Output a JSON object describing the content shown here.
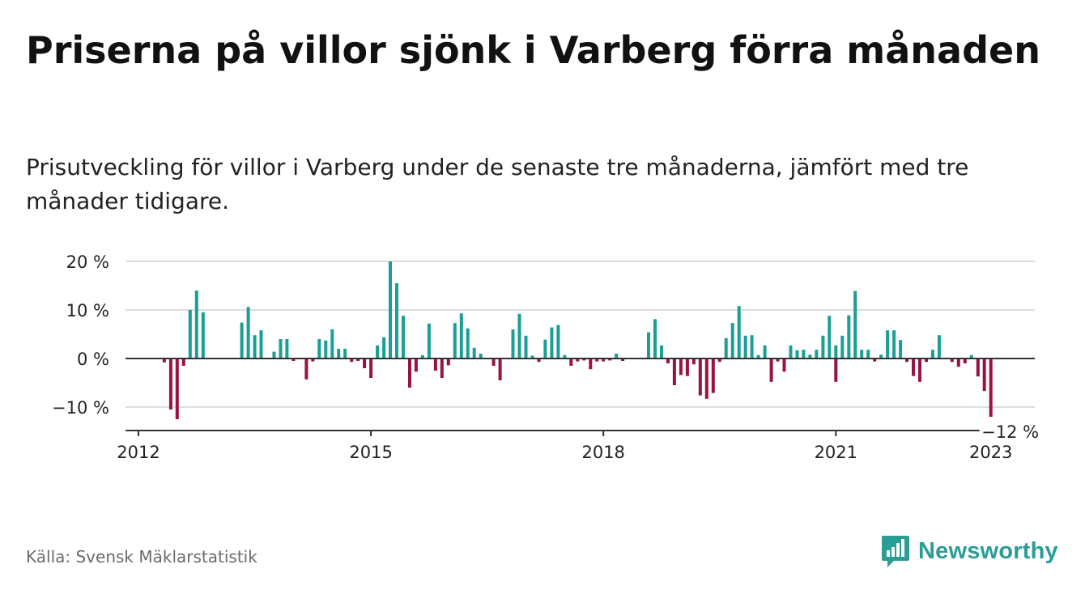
{
  "title": "Priserna på villor sjönk i Varberg förra månaden",
  "subtitle": "Prisutveckling för villor i Varberg under de senaste tre månaderna, jämfört med tre månader tidigare.",
  "source": "Källa: Svensk Mäklarstatistik",
  "brand": {
    "name": "Newsworthy",
    "icon": "newsworthy-logo-icon"
  },
  "colors": {
    "positive": "#1a9e96",
    "negative": "#9a1244",
    "grid": "#dddddd",
    "axis": "#333333"
  },
  "chart_data": {
    "type": "bar",
    "y_ticks": [
      {
        "value": 20,
        "label": "20 %"
      },
      {
        "value": 10,
        "label": "10 %"
      },
      {
        "value": 0,
        "label": "0 %"
      },
      {
        "value": -10,
        "label": "−10 %"
      }
    ],
    "x_ticks": [
      {
        "value": "2012-01",
        "label": "2012"
      },
      {
        "value": "2015-01",
        "label": "2015"
      },
      {
        "value": "2018-01",
        "label": "2018"
      },
      {
        "value": "2021-01",
        "label": "2021"
      },
      {
        "value": "2023-01",
        "label": "2023"
      }
    ],
    "ylim": [
      -15,
      20
    ],
    "xlim": [
      "2012-01",
      "2023-06"
    ],
    "grid": true,
    "annotation": {
      "x": "2023-04",
      "label": "−12 %"
    },
    "points": [
      {
        "x": "2012-05",
        "y": -0.8
      },
      {
        "x": "2012-06",
        "y": -10.5
      },
      {
        "x": "2012-07",
        "y": -12.5
      },
      {
        "x": "2012-08",
        "y": -1.5
      },
      {
        "x": "2012-09",
        "y": 10
      },
      {
        "x": "2012-10",
        "y": 14
      },
      {
        "x": "2012-11",
        "y": 9.5
      },
      {
        "x": "2013-05",
        "y": 7.4
      },
      {
        "x": "2013-06",
        "y": 10.6
      },
      {
        "x": "2013-07",
        "y": 4.8
      },
      {
        "x": "2013-08",
        "y": 5.8
      },
      {
        "x": "2013-10",
        "y": 1.4
      },
      {
        "x": "2013-11",
        "y": 4
      },
      {
        "x": "2013-12",
        "y": 4
      },
      {
        "x": "2014-01",
        "y": -0.5
      },
      {
        "x": "2014-03",
        "y": -4.3
      },
      {
        "x": "2014-04",
        "y": -0.6
      },
      {
        "x": "2014-05",
        "y": 4
      },
      {
        "x": "2014-06",
        "y": 3.7
      },
      {
        "x": "2014-07",
        "y": 6
      },
      {
        "x": "2014-08",
        "y": 2
      },
      {
        "x": "2014-09",
        "y": 2
      },
      {
        "x": "2014-10",
        "y": -0.7
      },
      {
        "x": "2014-11",
        "y": -0.5
      },
      {
        "x": "2014-12",
        "y": -2
      },
      {
        "x": "2015-01",
        "y": -4
      },
      {
        "x": "2015-02",
        "y": 2.7
      },
      {
        "x": "2015-03",
        "y": 4.4
      },
      {
        "x": "2015-04",
        "y": 20
      },
      {
        "x": "2015-05",
        "y": 15.5
      },
      {
        "x": "2015-06",
        "y": 8.8
      },
      {
        "x": "2015-07",
        "y": -6
      },
      {
        "x": "2015-08",
        "y": -2.7
      },
      {
        "x": "2015-09",
        "y": 0.7
      },
      {
        "x": "2015-10",
        "y": 7.2
      },
      {
        "x": "2015-11",
        "y": -2.5
      },
      {
        "x": "2015-12",
        "y": -4
      },
      {
        "x": "2016-01",
        "y": -1.4
      },
      {
        "x": "2016-02",
        "y": 7.3
      },
      {
        "x": "2016-03",
        "y": 9.3
      },
      {
        "x": "2016-04",
        "y": 6.2
      },
      {
        "x": "2016-05",
        "y": 2.2
      },
      {
        "x": "2016-06",
        "y": 1
      },
      {
        "x": "2016-08",
        "y": -1.5
      },
      {
        "x": "2016-09",
        "y": -4.5
      },
      {
        "x": "2016-11",
        "y": 6
      },
      {
        "x": "2016-12",
        "y": 9.2
      },
      {
        "x": "2017-01",
        "y": 4.7
      },
      {
        "x": "2017-02",
        "y": 0.6
      },
      {
        "x": "2017-03",
        "y": -0.7
      },
      {
        "x": "2017-04",
        "y": 3.9
      },
      {
        "x": "2017-05",
        "y": 6.4
      },
      {
        "x": "2017-06",
        "y": 6.9
      },
      {
        "x": "2017-07",
        "y": 0.7
      },
      {
        "x": "2017-08",
        "y": -1.5
      },
      {
        "x": "2017-09",
        "y": -0.6
      },
      {
        "x": "2017-10",
        "y": -0.4
      },
      {
        "x": "2017-11",
        "y": -2.2
      },
      {
        "x": "2017-12",
        "y": -0.6
      },
      {
        "x": "2018-01",
        "y": -0.6
      },
      {
        "x": "2018-02",
        "y": -0.4
      },
      {
        "x": "2018-03",
        "y": 1
      },
      {
        "x": "2018-04",
        "y": -0.5
      },
      {
        "x": "2018-08",
        "y": 5.4
      },
      {
        "x": "2018-09",
        "y": 8.1
      },
      {
        "x": "2018-10",
        "y": 2.7
      },
      {
        "x": "2018-11",
        "y": -1
      },
      {
        "x": "2018-12",
        "y": -5.5
      },
      {
        "x": "2019-01",
        "y": -3.4
      },
      {
        "x": "2019-02",
        "y": -3.6
      },
      {
        "x": "2019-03",
        "y": -1.2
      },
      {
        "x": "2019-04",
        "y": -7.6
      },
      {
        "x": "2019-05",
        "y": -8.3
      },
      {
        "x": "2019-06",
        "y": -7.1
      },
      {
        "x": "2019-07",
        "y": -0.7
      },
      {
        "x": "2019-08",
        "y": 4.2
      },
      {
        "x": "2019-09",
        "y": 7.3
      },
      {
        "x": "2019-10",
        "y": 10.8
      },
      {
        "x": "2019-11",
        "y": 4.7
      },
      {
        "x": "2019-12",
        "y": 4.8
      },
      {
        "x": "2020-01",
        "y": 0.7
      },
      {
        "x": "2020-02",
        "y": 2.7
      },
      {
        "x": "2020-03",
        "y": -4.8
      },
      {
        "x": "2020-04",
        "y": -0.6
      },
      {
        "x": "2020-05",
        "y": -2.7
      },
      {
        "x": "2020-06",
        "y": 2.7
      },
      {
        "x": "2020-07",
        "y": 1.7
      },
      {
        "x": "2020-08",
        "y": 1.8
      },
      {
        "x": "2020-09",
        "y": 0.8
      },
      {
        "x": "2020-10",
        "y": 1.8
      },
      {
        "x": "2020-11",
        "y": 4.7
      },
      {
        "x": "2020-12",
        "y": 8.8
      },
      {
        "x": "2021-01",
        "y": 2.7
      },
      {
        "x": "2021-01",
        "y": -4.8
      },
      {
        "x": "2021-02",
        "y": 4.7
      },
      {
        "x": "2021-03",
        "y": 8.9
      },
      {
        "x": "2021-04",
        "y": 13.9
      },
      {
        "x": "2021-05",
        "y": 1.8
      },
      {
        "x": "2021-06",
        "y": 1.8
      },
      {
        "x": "2021-07",
        "y": -0.6
      },
      {
        "x": "2021-08",
        "y": 0.8
      },
      {
        "x": "2021-09",
        "y": 5.8
      },
      {
        "x": "2021-10",
        "y": 5.8
      },
      {
        "x": "2021-11",
        "y": 3.8
      },
      {
        "x": "2021-12",
        "y": -0.7
      },
      {
        "x": "2022-01",
        "y": -3.6
      },
      {
        "x": "2022-02",
        "y": -4.8
      },
      {
        "x": "2022-03",
        "y": -0.7
      },
      {
        "x": "2022-04",
        "y": 1.8
      },
      {
        "x": "2022-05",
        "y": 4.8
      },
      {
        "x": "2022-07",
        "y": -0.7
      },
      {
        "x": "2022-08",
        "y": -1.7
      },
      {
        "x": "2022-09",
        "y": -1
      },
      {
        "x": "2022-10",
        "y": 0.7
      },
      {
        "x": "2022-11",
        "y": -3.7
      },
      {
        "x": "2022-12",
        "y": -6.7
      },
      {
        "x": "2023-01",
        "y": -12
      }
    ]
  }
}
